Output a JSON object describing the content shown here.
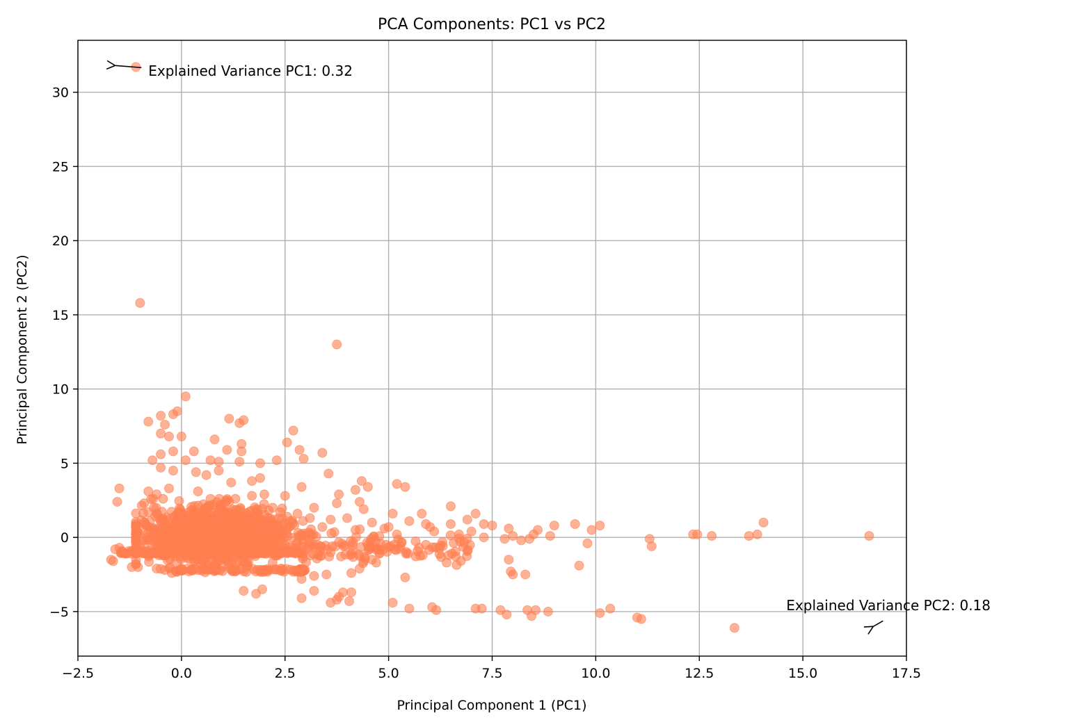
{
  "chart_data": {
    "type": "scatter",
    "title": "PCA Components: PC1 vs PC2",
    "xlabel": "Principal Component 1 (PC1)",
    "ylabel": "Principal Component 2 (PC2)",
    "xlim": [
      -2.5,
      17.5
    ],
    "ylim": [
      -8,
      33.5
    ],
    "xticks": [
      -2.5,
      0.0,
      2.5,
      5.0,
      7.5,
      10.0,
      12.5,
      15.0,
      17.5
    ],
    "xtick_labels": [
      "−2.5",
      "0.0",
      "2.5",
      "5.0",
      "7.5",
      "10.0",
      "12.5",
      "15.0",
      "17.5"
    ],
    "yticks": [
      -5,
      0,
      5,
      10,
      15,
      20,
      25,
      30
    ],
    "ytick_labels": [
      "−5",
      "0",
      "5",
      "10",
      "15",
      "20",
      "25",
      "30"
    ],
    "grid": true,
    "point_color": "#ff7f50",
    "point_alpha": 0.6,
    "annotations": [
      {
        "text": "Explained Variance PC1: 0.32",
        "x": -0.8,
        "y": 31.1,
        "arrow_to": [
          -1.6,
          31.8
        ]
      },
      {
        "text": "Explained Variance PC2: 0.18",
        "x": 14.6,
        "y": -4.9,
        "arrow_to": [
          16.7,
          -6.0
        ]
      }
    ],
    "points": [
      [
        -1.1,
        31.7
      ],
      [
        -1.0,
        15.8
      ],
      [
        3.75,
        13.0
      ],
      [
        0.1,
        9.5
      ],
      [
        -0.1,
        8.5
      ],
      [
        -0.2,
        8.3
      ],
      [
        -0.5,
        8.2
      ],
      [
        -0.8,
        7.8
      ],
      [
        -0.4,
        7.6
      ],
      [
        1.15,
        8.0
      ],
      [
        1.5,
        7.9
      ],
      [
        1.4,
        7.7
      ],
      [
        2.7,
        7.2
      ],
      [
        -0.5,
        7.0
      ],
      [
        -0.3,
        6.8
      ],
      [
        0.0,
        6.8
      ],
      [
        0.8,
        6.6
      ],
      [
        2.55,
        6.4
      ],
      [
        1.45,
        6.3
      ],
      [
        2.85,
        5.9
      ],
      [
        1.45,
        5.8
      ],
      [
        1.1,
        5.9
      ],
      [
        3.4,
        5.7
      ],
      [
        -0.5,
        5.6
      ],
      [
        0.3,
        5.8
      ],
      [
        -0.2,
        5.8
      ],
      [
        -0.7,
        5.2
      ],
      [
        0.1,
        5.2
      ],
      [
        0.7,
        5.2
      ],
      [
        0.9,
        5.1
      ],
      [
        1.4,
        5.1
      ],
      [
        1.9,
        5.0
      ],
      [
        2.95,
        5.3
      ],
      [
        2.3,
        5.2
      ],
      [
        -0.5,
        4.7
      ],
      [
        -0.2,
        4.5
      ],
      [
        0.35,
        4.4
      ],
      [
        0.6,
        4.2
      ],
      [
        0.9,
        4.5
      ],
      [
        3.55,
        4.3
      ],
      [
        4.35,
        3.8
      ],
      [
        4.5,
        3.4
      ],
      [
        5.2,
        3.6
      ],
      [
        5.4,
        3.4
      ],
      [
        -1.5,
        3.3
      ],
      [
        -1.55,
        2.4
      ],
      [
        -0.8,
        3.1
      ],
      [
        1.9,
        4.0
      ],
      [
        2.9,
        3.4
      ],
      [
        3.8,
        2.9
      ],
      [
        2.5,
        2.8
      ],
      [
        4.3,
        2.4
      ],
      [
        4.2,
        3.2
      ],
      [
        1.2,
        3.7
      ],
      [
        1.7,
        3.8
      ],
      [
        2.0,
        2.9
      ],
      [
        3.75,
        2.3
      ],
      [
        4.4,
        1.9
      ],
      [
        3.2,
        2.0
      ],
      [
        6.5,
        2.1
      ],
      [
        7.1,
        1.6
      ],
      [
        5.1,
        1.6
      ],
      [
        5.8,
        1.6
      ],
      [
        9.5,
        0.9
      ],
      [
        10.1,
        0.8
      ],
      [
        14.05,
        1.0
      ],
      [
        9.9,
        0.5
      ],
      [
        12.35,
        0.2
      ],
      [
        12.45,
        0.2
      ],
      [
        12.8,
        0.1
      ],
      [
        13.7,
        0.1
      ],
      [
        13.9,
        0.2
      ],
      [
        16.6,
        0.1
      ],
      [
        11.3,
        -0.1
      ],
      [
        11.35,
        -0.6
      ],
      [
        9.8,
        -0.4
      ],
      [
        8.5,
        0.2
      ],
      [
        8.9,
        0.1
      ],
      [
        8.2,
        -0.2
      ],
      [
        5.0,
        0.7
      ],
      [
        6.0,
        0.7
      ],
      [
        6.5,
        0.9
      ],
      [
        7.0,
        0.4
      ],
      [
        7.5,
        0.8
      ],
      [
        7.9,
        0.6
      ],
      [
        8.6,
        0.5
      ],
      [
        5.5,
        1.1
      ],
      [
        5.9,
        0.9
      ],
      [
        6.9,
        1.2
      ],
      [
        7.3,
        0.9
      ],
      [
        9.0,
        0.8
      ],
      [
        4.8,
        -0.4
      ],
      [
        5.9,
        -0.5
      ],
      [
        6.3,
        -0.3
      ],
      [
        7.8,
        -0.1
      ],
      [
        4.6,
        -1.5
      ],
      [
        5.15,
        -0.8
      ],
      [
        5.4,
        -2.7
      ],
      [
        6.45,
        -1.2
      ],
      [
        6.4,
        -1.7
      ],
      [
        7.9,
        -1.5
      ],
      [
        8.0,
        -2.5
      ],
      [
        8.3,
        -2.5
      ],
      [
        7.95,
        -2.3
      ],
      [
        9.6,
        -1.9
      ],
      [
        4.7,
        -1.7
      ],
      [
        3.5,
        -2.5
      ],
      [
        3.6,
        -4.4
      ],
      [
        3.75,
        -4.2
      ],
      [
        3.8,
        -4.0
      ],
      [
        3.9,
        -3.7
      ],
      [
        4.1,
        -3.7
      ],
      [
        4.05,
        -4.3
      ],
      [
        2.9,
        -4.1
      ],
      [
        3.2,
        -3.6
      ],
      [
        1.5,
        -3.6
      ],
      [
        1.8,
        -3.8
      ],
      [
        1.95,
        -3.5
      ],
      [
        5.1,
        -4.4
      ],
      [
        5.5,
        -4.8
      ],
      [
        6.05,
        -4.7
      ],
      [
        6.15,
        -4.9
      ],
      [
        7.1,
        -4.8
      ],
      [
        7.25,
        -4.8
      ],
      [
        7.7,
        -4.9
      ],
      [
        7.85,
        -5.2
      ],
      [
        8.35,
        -4.9
      ],
      [
        8.45,
        -5.3
      ],
      [
        8.55,
        -4.9
      ],
      [
        8.85,
        -5.0
      ],
      [
        10.1,
        -5.1
      ],
      [
        10.35,
        -4.8
      ],
      [
        11.0,
        -5.4
      ],
      [
        11.1,
        -5.5
      ],
      [
        13.35,
        -6.1
      ],
      [
        -1.7,
        -1.5
      ],
      [
        -1.65,
        -1.6
      ],
      [
        -1.6,
        -0.8
      ],
      [
        -1.5,
        -0.7
      ],
      [
        -1.2,
        -2.0
      ],
      [
        -1.05,
        -2.0
      ],
      [
        -0.6,
        -2.1
      ],
      [
        -0.4,
        -2.2
      ],
      [
        0.0,
        -2.1
      ],
      [
        0.4,
        -2.2
      ],
      [
        0.8,
        -2.2
      ],
      [
        1.3,
        -2.3
      ],
      [
        1.9,
        -2.2
      ],
      [
        2.4,
        -2.1
      ],
      [
        2.9,
        -2.3
      ],
      [
        3.2,
        -2.6
      ],
      [
        3.3,
        -1.2
      ],
      [
        2.9,
        -2.8
      ],
      [
        4.1,
        -2.4
      ],
      [
        4.3,
        -2.1
      ],
      [
        4.4,
        -1.6
      ],
      [
        4.1,
        -1.1
      ],
      [
        3.6,
        -1.0
      ],
      [
        1.0,
        -2.0
      ],
      [
        1.6,
        -1.9
      ],
      [
        2.2,
        -1.7
      ],
      [
        -0.9,
        2.3
      ],
      [
        -0.8,
        1.7
      ],
      [
        -0.6,
        2.9
      ],
      [
        -0.3,
        3.3
      ],
      [
        0.4,
        3.1
      ],
      [
        0.7,
        2.6
      ],
      [
        1.1,
        2.5
      ],
      [
        1.7,
        2.8
      ],
      [
        2.2,
        2.0
      ],
      [
        2.8,
        1.6
      ],
      [
        3.1,
        1.3
      ],
      [
        3.6,
        1.2
      ],
      [
        4.0,
        1.3
      ],
      [
        4.6,
        1.0
      ],
      [
        4.9,
        0.6
      ],
      [
        5.2,
        0.2
      ],
      [
        6.1,
        0.4
      ],
      [
        6.7,
        0.2
      ],
      [
        7.3,
        0.0
      ],
      [
        8.0,
        0.1
      ],
      [
        8.4,
        -0.1
      ],
      [
        4.2,
        0.5
      ],
      [
        3.4,
        0.7
      ]
    ]
  }
}
